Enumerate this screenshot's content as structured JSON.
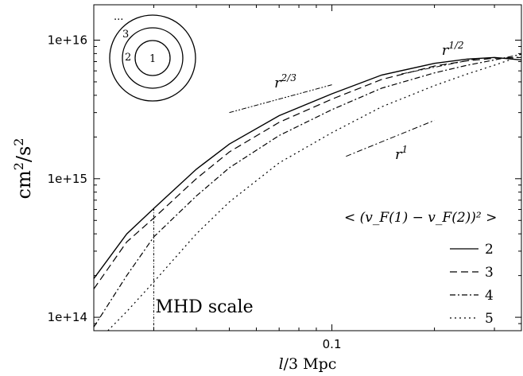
{
  "chart_data": {
    "type": "line",
    "x_scale": "log",
    "y_scale": "log",
    "xlim": [
      0.02,
      0.36
    ],
    "ylim": [
      80000000000000,
      18000000000000000
    ],
    "xlabel": {
      "italic": "l",
      "rest": "/3 Mpc"
    },
    "ylabel": {
      "base": "cm",
      "exp1": "2",
      "sep": "/s",
      "exp2": "2"
    },
    "x_ticks": [
      {
        "value": 0.1,
        "label": "0.1"
      }
    ],
    "y_ticks": [
      {
        "value": 100000000000000,
        "label": "1e+14"
      },
      {
        "value": 1000000000000000,
        "label": "1e+15"
      },
      {
        "value": 10000000000000000,
        "label": "1e+16"
      }
    ],
    "legend": {
      "title": "< (v_F(1) − v_F(2))² >",
      "placement": "right",
      "entries": [
        "2",
        "3",
        "4",
        "5"
      ]
    },
    "series": [
      {
        "name": "2",
        "dash": "solid",
        "x": [
          0.02,
          0.025,
          0.03,
          0.04,
          0.05,
          0.07,
          0.1,
          0.14,
          0.2,
          0.25,
          0.3,
          0.36
        ],
        "y": [
          190000000000000.0,
          400000000000000.0,
          610000000000000.0,
          1170000000000000.0,
          1780000000000000.0,
          2850000000000000.0,
          4100000000000000.0,
          5600000000000000.0,
          6800000000000000.0,
          7300000000000000.0,
          7500000000000000.0,
          7200000000000000.0
        ]
      },
      {
        "name": "3",
        "dash": "dashed",
        "x": [
          0.02,
          0.025,
          0.03,
          0.04,
          0.05,
          0.07,
          0.1,
          0.14,
          0.2,
          0.25,
          0.3,
          0.36
        ],
        "y": [
          160000000000000.0,
          350000000000000.0,
          520000000000000.0,
          1000000000000000.0,
          1560000000000000.0,
          2550000000000000.0,
          3750000000000000.0,
          5200000000000000.0,
          6500000000000000.0,
          7100000000000000.0,
          7400000000000000.0,
          7500000000000000.0
        ]
      },
      {
        "name": "4",
        "dash": "dashdot",
        "x": [
          0.02,
          0.025,
          0.03,
          0.04,
          0.05,
          0.07,
          0.1,
          0.14,
          0.2,
          0.25,
          0.3,
          0.36
        ],
        "y": [
          85000000000000.0,
          200000000000000.0,
          380000000000000.0,
          750000000000000.0,
          1200000000000000.0,
          2050000000000000.0,
          3150000000000000.0,
          4500000000000000.0,
          5800000000000000.0,
          6600000000000000.0,
          7200000000000000.0,
          7900000000000000.0
        ]
      },
      {
        "name": "5",
        "dash": "dotted",
        "x": [
          0.022,
          0.025,
          0.03,
          0.04,
          0.05,
          0.07,
          0.1,
          0.14,
          0.2,
          0.25,
          0.3,
          0.36
        ],
        "y": [
          80000000000000.0,
          110000000000000.0,
          180000000000000.0,
          400000000000000.0,
          680000000000000.0,
          1300000000000000.0,
          2150000000000000.0,
          3300000000000000.0,
          4700000000000000.0,
          5700000000000000.0,
          6600000000000000.0,
          7700000000000000.0
        ]
      }
    ],
    "reference_slopes": [
      {
        "label_base": "r",
        "label_exp": "1/2",
        "exponent": 0.5,
        "dash": "dashdot",
        "x_range": [
          0.16,
          0.27
        ],
        "y_start": 5700000000000000.0
      },
      {
        "label_base": "r",
        "label_exp": "2/3",
        "exponent": 0.6667,
        "dash": "dashdotdot",
        "x_range": [
          0.05,
          0.1
        ],
        "y_start": 3000000000000000.0
      },
      {
        "label_base": "r",
        "label_exp": "1",
        "exponent": 1.0,
        "dash": "dashdot",
        "x_range": [
          0.11,
          0.2
        ],
        "y_start": 1450000000000000.0
      }
    ],
    "annotations": [
      {
        "text": "MHD scale",
        "x": 0.03
      }
    ],
    "inset": {
      "ring_labels": [
        "1",
        "2",
        "3",
        "..."
      ]
    }
  }
}
